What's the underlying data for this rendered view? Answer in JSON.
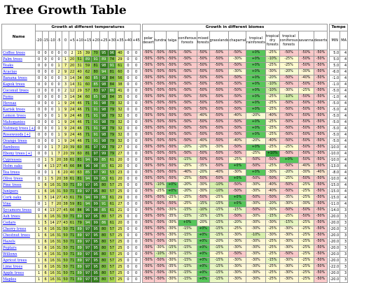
{
  "page": {
    "title": "Tree Growth Table"
  },
  "headers": {
    "name": "Name",
    "temp_group": "Growth at different temperatures",
    "biome_group": "Growth in different biomes",
    "extra_group": "Tempe",
    "temps": [
      "-20",
      "-15",
      "-10",
      "-5",
      "0",
      "+5",
      "+10",
      "+15",
      "+20",
      "+25",
      "+30",
      "+35",
      "+40",
      "+45"
    ],
    "biomes": [
      "polar desert",
      "tundra",
      "taiga",
      "coniferous forests",
      "mixed forests",
      "grasslands",
      "chaparral",
      "tropical rainforests",
      "tropical dry forests",
      "tropical coniferous forests",
      "savanna",
      "deserts"
    ],
    "extra": [
      "MIN",
      "MA"
    ]
  },
  "colors": {
    "temp_scale": [
      "#ffffff",
      "#ffffcc",
      "#f3f3a0",
      "#e6f07a",
      "#cfe86a",
      "#a9d84f",
      "#7fc242",
      "#4fa02c",
      "#337d1c"
    ],
    "bio": {
      "-50%": "#f9c9c9",
      "-40%": "#fde6d0",
      "-35%": "#fef0da",
      "-30%": "#fff7d6",
      "-25%": "#fffbd0",
      "-20%": "#f6fbd2",
      "-15%": "#e8f6c2",
      "-10%": "#d8efad",
      "+0%": "#57c65a",
      "+10%": "#36a83c"
    }
  },
  "rows": [
    {
      "name": "Coffee trees",
      "temps": [
        0,
        0,
        0,
        0,
        0,
        2,
        15,
        39,
        70,
        95,
        96,
        40,
        0,
        0
      ],
      "biomes": [
        "-50%",
        "-50%",
        "-50%",
        "-50%",
        "-50%",
        "-50%",
        "-50%",
        "+0%",
        "-25%",
        "-50%",
        "-50%",
        "-50%"
      ],
      "min": "5.0",
      "max": "4"
    },
    {
      "name": "Palm trees",
      "temps": [
        0,
        0,
        0,
        0,
        1,
        20,
        51,
        89,
        91,
        89,
        74,
        29,
        0,
        0
      ],
      "biomes": [
        "-50%",
        "-50%",
        "-50%",
        "-50%",
        "-50%",
        "-50%",
        "-30%",
        "+0%",
        "-10%",
        "-25%",
        "-50%",
        "-50%"
      ],
      "min": "5.0",
      "max": "4"
    },
    {
      "name": "Teaks",
      "temps": [
        0,
        0,
        0,
        1,
        7,
        20,
        31,
        59,
        81,
        98,
        91,
        61,
        0,
        0
      ],
      "biomes": [
        "-50%",
        "-50%",
        "-50%",
        "-50%",
        "-50%",
        "-50%",
        "-50%",
        "+0%",
        "-25%",
        "-25%",
        "-50%",
        "-50%"
      ],
      "min": "5.0",
      "max": "4"
    },
    {
      "name": "Acacias",
      "temps": [
        0,
        0,
        0,
        2,
        9,
        22,
        40,
        62,
        80,
        94,
        81,
        60,
        0,
        0
      ],
      "biomes": [
        "-50%",
        "-50%",
        "-50%",
        "-50%",
        "-50%",
        "-50%",
        "-30%",
        "+0%",
        "-30%",
        "-20%",
        "-30%",
        "-50%"
      ],
      "min": "-6.0",
      "max": "4"
    },
    {
      "name": "Banana trees",
      "temps": [
        0,
        0,
        0,
        0,
        3,
        14,
        34,
        60,
        85,
        98,
        84,
        56,
        0,
        0
      ],
      "biomes": [
        "-50%",
        "-50%",
        "-50%",
        "-50%",
        "-50%",
        "-50%",
        "-50%",
        "+0%",
        "-20%",
        "-50%",
        "-40%",
        "-50%"
      ],
      "min": "-1.0",
      "max": "4"
    },
    {
      "name": "Kapok trees",
      "temps": [
        0,
        0,
        0,
        0,
        3,
        14,
        31,
        60,
        85,
        98,
        84,
        38,
        0,
        0
      ],
      "biomes": [
        "-50%",
        "-50%",
        "-50%",
        "-50%",
        "-50%",
        "-50%",
        "-50%",
        "+0%",
        "-10%",
        "-50%",
        "-50%",
        "-50%"
      ],
      "min": "-1.0",
      "max": "4"
    },
    {
      "name": "Coconut trees",
      "temps": [
        0,
        0,
        0,
        0,
        2,
        12,
        29,
        57,
        83,
        97,
        86,
        41,
        0,
        0
      ],
      "biomes": [
        "-50%",
        "-50%",
        "-50%",
        "-50%",
        "-50%",
        "-50%",
        "-50%",
        "+0%",
        "-10%",
        "-30%",
        "-25%",
        "-50%"
      ],
      "min": "-5.0",
      "max": "4"
    },
    {
      "name": "Ferns",
      "temps": [
        0,
        0,
        0,
        0,
        3,
        14,
        34,
        60,
        85,
        98,
        84,
        35,
        0,
        0
      ],
      "biomes": [
        "-50%",
        "-50%",
        "-50%",
        "-50%",
        "-50%",
        "-50%",
        "-50%",
        "+0%",
        "-25%",
        "-10%",
        "-50%",
        "-50%"
      ],
      "min": "-1.0",
      "max": "4"
    },
    {
      "name": "Heveas",
      "temps": [
        0,
        0,
        0,
        1,
        9,
        24,
        46,
        71,
        91,
        98,
        79,
        32,
        0,
        0
      ],
      "biomes": [
        "-50%",
        "-50%",
        "-50%",
        "-50%",
        "-50%",
        "-50%",
        "-50%",
        "+0%",
        "-25%",
        "-50%",
        "-50%",
        "-50%"
      ],
      "min": "-5.0",
      "max": "4"
    },
    {
      "name": "Karisk trees",
      "temps": [
        0,
        0,
        0,
        1,
        9,
        24,
        46,
        71,
        91,
        98,
        79,
        32,
        0,
        0
      ],
      "biomes": [
        "-50%",
        "-50%",
        "-50%",
        "-50%",
        "-50%",
        "-50%",
        "-50%",
        "+0%",
        "-25%",
        "-50%",
        "-50%",
        "-50%"
      ],
      "min": "-5.0",
      "max": "4"
    },
    {
      "name": "Lemon trees",
      "temps": [
        0,
        0,
        0,
        1,
        9,
        24,
        46,
        71,
        91,
        98,
        79,
        32,
        0,
        0
      ],
      "biomes": [
        "-50%",
        "-50%",
        "-50%",
        "-50%",
        "-40%",
        "-50%",
        "-40%",
        "-20%",
        "-40%",
        "-50%",
        "-50%",
        "-50%"
      ],
      "min": "-5.0",
      "max": "4"
    },
    {
      "name": "Mahoganies",
      "temps": [
        0,
        0,
        0,
        1,
        9,
        24,
        46,
        71,
        91,
        98,
        79,
        32,
        0,
        0
      ],
      "biomes": [
        "-50%",
        "-50%",
        "-50%",
        "-50%",
        "-50%",
        "-50%",
        "-50%",
        "+0%",
        "-25%",
        "-50%",
        "-50%",
        "-50%"
      ],
      "min": "-5.0",
      "max": "4"
    },
    {
      "name": "Nutmeg trees [+]",
      "temps": [
        0,
        0,
        0,
        1,
        9,
        24,
        46,
        71,
        91,
        98,
        79,
        32,
        0,
        0
      ],
      "biomes": [
        "-50%",
        "-50%",
        "-50%",
        "-50%",
        "-50%",
        "-50%",
        "-50%",
        "+0%",
        "-25%",
        "-50%",
        "-50%",
        "-50%"
      ],
      "min": "-5.0",
      "max": "4"
    },
    {
      "name": "Rosewoods [+]",
      "temps": [
        0,
        0,
        0,
        1,
        9,
        24,
        46,
        71,
        91,
        98,
        79,
        32,
        0,
        0
      ],
      "biomes": [
        "-50%",
        "-50%",
        "-50%",
        "-50%",
        "-50%",
        "-50%",
        "-50%",
        "+0%",
        "-25%",
        "-50%",
        "-50%",
        "-50%"
      ],
      "min": "-5.0",
      "max": "4"
    },
    {
      "name": "Orange trees",
      "temps": [
        0,
        0,
        0,
        1,
        9,
        24,
        46,
        71,
        91,
        98,
        79,
        32,
        0,
        0
      ],
      "biomes": [
        "-50%",
        "-50%",
        "-50%",
        "-50%",
        "-40%",
        "-50%",
        "-40%",
        "-20%",
        "-40%",
        "-50%",
        "-50%",
        "-50%"
      ],
      "min": "-5.0",
      "max": "4"
    },
    {
      "name": "Bamboos",
      "temps": [
        0,
        0,
        1,
        7,
        20,
        39,
        60,
        81,
        97,
        99,
        79,
        27,
        0,
        0
      ],
      "biomes": [
        "-50%",
        "-50%",
        "-50%",
        "-20%",
        "-20%",
        "-30%",
        "-50%",
        "+0%",
        "-25%",
        "-25%",
        "-50%",
        "-50%"
      ],
      "min": "-10.0",
      "max": "4"
    },
    {
      "name": "Ebony trees [+]",
      "temps": [
        0,
        0,
        1,
        7,
        20,
        39,
        60,
        81,
        97,
        99,
        79,
        27,
        0,
        0
      ],
      "biomes": [
        "-50%",
        "-50%",
        "-50%",
        "-50%",
        "-50%",
        "-50%",
        "-50%",
        "-25%",
        "+10%",
        "-50%",
        "-50%",
        "-50%"
      ],
      "min": "-10.0",
      "max": "4"
    },
    {
      "name": "Cypresses",
      "temps": [
        0,
        1,
        5,
        20,
        38,
        61,
        81,
        94,
        99,
        85,
        61,
        20,
        0,
        0
      ],
      "biomes": [
        "-50%",
        "-50%",
        "-50%",
        "-15%",
        "-50%",
        "-50%",
        "-25%",
        "-50%",
        "-50%",
        "+0%",
        "-50%",
        "-50%"
      ],
      "min": "-10.0",
      "max": "4"
    },
    {
      "name": "Holm oaks",
      "temps": [
        0,
        4,
        13,
        27,
        45,
        66,
        84,
        96,
        98,
        85,
        61,
        20,
        0,
        0
      ],
      "biomes": [
        "-50%",
        "-50%",
        "-50%",
        "-25%",
        "-35%",
        "-50%",
        "+0%",
        "-50%",
        "-25%",
        "-50%",
        "-40%",
        "-50%"
      ],
      "min": "-13.0",
      "max": "4"
    },
    {
      "name": "Tea trees",
      "temps": [
        0,
        0,
        1,
        6,
        20,
        40,
        63,
        85,
        97,
        90,
        53,
        23,
        0,
        0
      ],
      "biomes": [
        "-50%",
        "-50%",
        "-50%",
        "-40%",
        "-20%",
        "-40%",
        "-30%",
        "+0%",
        "-30%",
        "-20%",
        "-30%",
        "-40%"
      ],
      "min": "-8.0",
      "max": "4"
    },
    {
      "name": "Olive trees",
      "temps": [
        0,
        1,
        5,
        20,
        38,
        61,
        81,
        94,
        99,
        85,
        61,
        20,
        0,
        0
      ],
      "biomes": [
        "-50%",
        "-50%",
        "-50%",
        "-25%",
        "-50%",
        "-50%",
        "+0%",
        "-50%",
        "-50%",
        "-25%",
        "-50%",
        "-50%"
      ],
      "min": "-10.0",
      "max": "4"
    },
    {
      "name": "Pine trees",
      "temps": [
        1,
        6,
        16,
        31,
        50,
        71,
        89,
        97,
        95,
        80,
        57,
        25,
        0,
        0
      ],
      "biomes": [
        "-50%",
        "-10%",
        "+0%",
        "-20%",
        "-30%",
        "-10%",
        "-50%",
        "-30%",
        "-40%",
        "-50%",
        "-25%",
        "-50%"
      ],
      "min": "-15.0",
      "max": "4"
    },
    {
      "name": "Junipers",
      "temps": [
        1,
        6,
        16,
        31,
        50,
        71,
        89,
        97,
        95,
        80,
        57,
        25,
        0,
        0
      ],
      "biomes": [
        "-50%",
        "-25%",
        "+0%",
        "-20%",
        "-30%",
        "-10%",
        "-50%",
        "-30%",
        "-40%",
        "-50%",
        "-25%",
        "-50%"
      ],
      "min": "-15.0",
      "max": "4"
    },
    {
      "name": "Cork oaks",
      "temps": [
        1,
        5,
        14,
        27,
        43,
        61,
        79,
        94,
        99,
        86,
        61,
        29,
        0,
        0
      ],
      "biomes": [
        "-50%",
        "-50%",
        "-25%",
        "-25%",
        "-50%",
        "-25%",
        "+0%",
        "-50%",
        "-50%",
        "-35%",
        "-25%",
        "-50%"
      ],
      "min": "-15.0",
      "max": "4"
    },
    {
      "name": "Vine",
      "temps": [
        0,
        1,
        7,
        20,
        38,
        59,
        81,
        94,
        99,
        91,
        61,
        27,
        0,
        0
      ],
      "biomes": [
        "-50%",
        "-50%",
        "-50%",
        "-25%",
        "-15%",
        "-15%",
        "+0%",
        "-30%",
        "-20%",
        "-30%",
        "-30%",
        "-50%"
      ],
      "min": "-11.0",
      "max": "4"
    },
    {
      "name": "Sycamore trees",
      "temps": [
        0,
        4,
        13,
        27,
        45,
        66,
        84,
        96,
        98,
        85,
        61,
        21,
        0,
        0
      ],
      "biomes": [
        "-50%",
        "-50%",
        "-30%",
        "-15%",
        "-10%",
        "-15%",
        "-15%",
        "-50%",
        "-30%",
        "-50%",
        "-50%",
        "-50%"
      ],
      "min": "-14.0",
      "max": "3"
    },
    {
      "name": "Ash trees",
      "temps": [
        1,
        6,
        16,
        31,
        50,
        71,
        89,
        97,
        95,
        80,
        57,
        25,
        0,
        0
      ],
      "biomes": [
        "-50%",
        "-50%",
        "-35%",
        "-15%",
        "-15%",
        "-15%",
        "-50%",
        "-30%",
        "-15%",
        "-25%",
        "-50%",
        "-50%"
      ],
      "min": "-20.0",
      "max": "3"
    },
    {
      "name": "Cedars",
      "temps": [
        1,
        5,
        14,
        27,
        43,
        61,
        79,
        94,
        99,
        86,
        61,
        20,
        0,
        0
      ],
      "biomes": [
        "-50%",
        "-50%",
        "-30%",
        "+0%",
        "-20%",
        "-15%",
        "-20%",
        "-30%",
        "-30%",
        "-15%",
        "-25%",
        "-50%"
      ],
      "min": "-20.0",
      "max": "3"
    },
    {
      "name": "Cherry trees",
      "temps": [
        1,
        6,
        16,
        31,
        50,
        71,
        89,
        97,
        95,
        80,
        57,
        25,
        0,
        0
      ],
      "biomes": [
        "-50%",
        "-50%",
        "-30%",
        "-15%",
        "+0%",
        "-15%",
        "-25%",
        "-30%",
        "-25%",
        "-30%",
        "-25%",
        "-50%"
      ],
      "min": "-20.0",
      "max": "3"
    },
    {
      "name": "Chestnut trees",
      "temps": [
        1,
        6,
        16,
        31,
        50,
        71,
        89,
        97,
        95,
        80,
        57,
        25,
        0,
        0
      ],
      "biomes": [
        "-50%",
        "-50%",
        "-30%",
        "-15%",
        "+0%",
        "-15%",
        "-30%",
        "-10%",
        "-30%",
        "-30%",
        "-25%",
        "-50%"
      ],
      "min": "-20.0",
      "max": "3"
    },
    {
      "name": "Hazels",
      "temps": [
        1,
        6,
        16,
        31,
        50,
        71,
        89,
        97,
        95,
        80,
        57,
        25,
        0,
        0
      ],
      "biomes": [
        "-50%",
        "-50%",
        "-30%",
        "-15%",
        "+0%",
        "-20%",
        "-30%",
        "-30%",
        "-25%",
        "-30%",
        "-25%",
        "-50%"
      ],
      "min": "-20.0",
      "max": "3"
    },
    {
      "name": "Poplars",
      "temps": [
        1,
        6,
        16,
        31,
        50,
        71,
        89,
        97,
        95,
        80,
        57,
        25,
        0,
        0
      ],
      "biomes": [
        "-50%",
        "-30%",
        "-15%",
        "-15%",
        "+0%",
        "-15%",
        "-30%",
        "-30%",
        "-25%",
        "-30%",
        "-25%",
        "-50%"
      ],
      "min": "-20.0",
      "max": "3"
    },
    {
      "name": "Willows",
      "temps": [
        1,
        6,
        16,
        31,
        50,
        71,
        89,
        97,
        95,
        80,
        57,
        25,
        0,
        0
      ],
      "biomes": [
        "-50%",
        "-10%",
        "-30%",
        "-15%",
        "+0%",
        "-25%",
        "-50%",
        "-30%",
        "-25%",
        "-50%",
        "-25%",
        "-50%"
      ],
      "min": "-20.0",
      "max": "3"
    },
    {
      "name": "Apricot trees",
      "temps": [
        1,
        6,
        16,
        31,
        50,
        71,
        89,
        97,
        95,
        80,
        57,
        25,
        0,
        0
      ],
      "biomes": [
        "-50%",
        "-50%",
        "-30%",
        "-15%",
        "+0%",
        "-15%",
        "-30%",
        "-30%",
        "-15%",
        "-30%",
        "-25%",
        "-50%"
      ],
      "min": "-20.0",
      "max": "3"
    },
    {
      "name": "Lime trees",
      "temps": [
        1,
        6,
        16,
        31,
        50,
        71,
        89,
        97,
        95,
        80,
        57,
        25,
        0,
        0
      ],
      "biomes": [
        "-50%",
        "-50%",
        "-35%",
        "-15%",
        "+0%",
        "-15%",
        "-30%",
        "-30%",
        "-25%",
        "-30%",
        "-25%",
        "-50%"
      ],
      "min": "-22.0",
      "max": "3"
    },
    {
      "name": "Apple trees",
      "temps": [
        1,
        6,
        16,
        31,
        50,
        71,
        89,
        97,
        95,
        80,
        57,
        25,
        0,
        0
      ],
      "biomes": [
        "-50%",
        "-50%",
        "-30%",
        "-15%",
        "+0%",
        "-15%",
        "-30%",
        "-30%",
        "-25%",
        "-30%",
        "-25%",
        "-50%"
      ],
      "min": "-20.0",
      "max": "3"
    },
    {
      "name": "Maples",
      "temps": [
        1,
        6,
        16,
        31,
        50,
        71,
        89,
        97,
        95,
        80,
        57,
        25,
        0,
        0
      ],
      "biomes": [
        "-50%",
        "-50%",
        "-30%",
        "-15%",
        "+0%",
        "-15%",
        "-30%",
        "-30%",
        "-25%",
        "-30%",
        "-25%",
        "-50%"
      ],
      "min": "-20.0",
      "max": "3"
    },
    {
      "name": "Pear trees",
      "temps": [
        1,
        6,
        16,
        31,
        50,
        71,
        89,
        97,
        95,
        80,
        57,
        25,
        0,
        0
      ],
      "biomes": [
        "-50%",
        "-50%",
        "-30%",
        "-15%",
        "+0%",
        "-15%",
        "-30%",
        "-30%",
        "-25%",
        "-30%",
        "-25%",
        "-50%"
      ],
      "min": "-25.0",
      "max": "3"
    }
  ]
}
